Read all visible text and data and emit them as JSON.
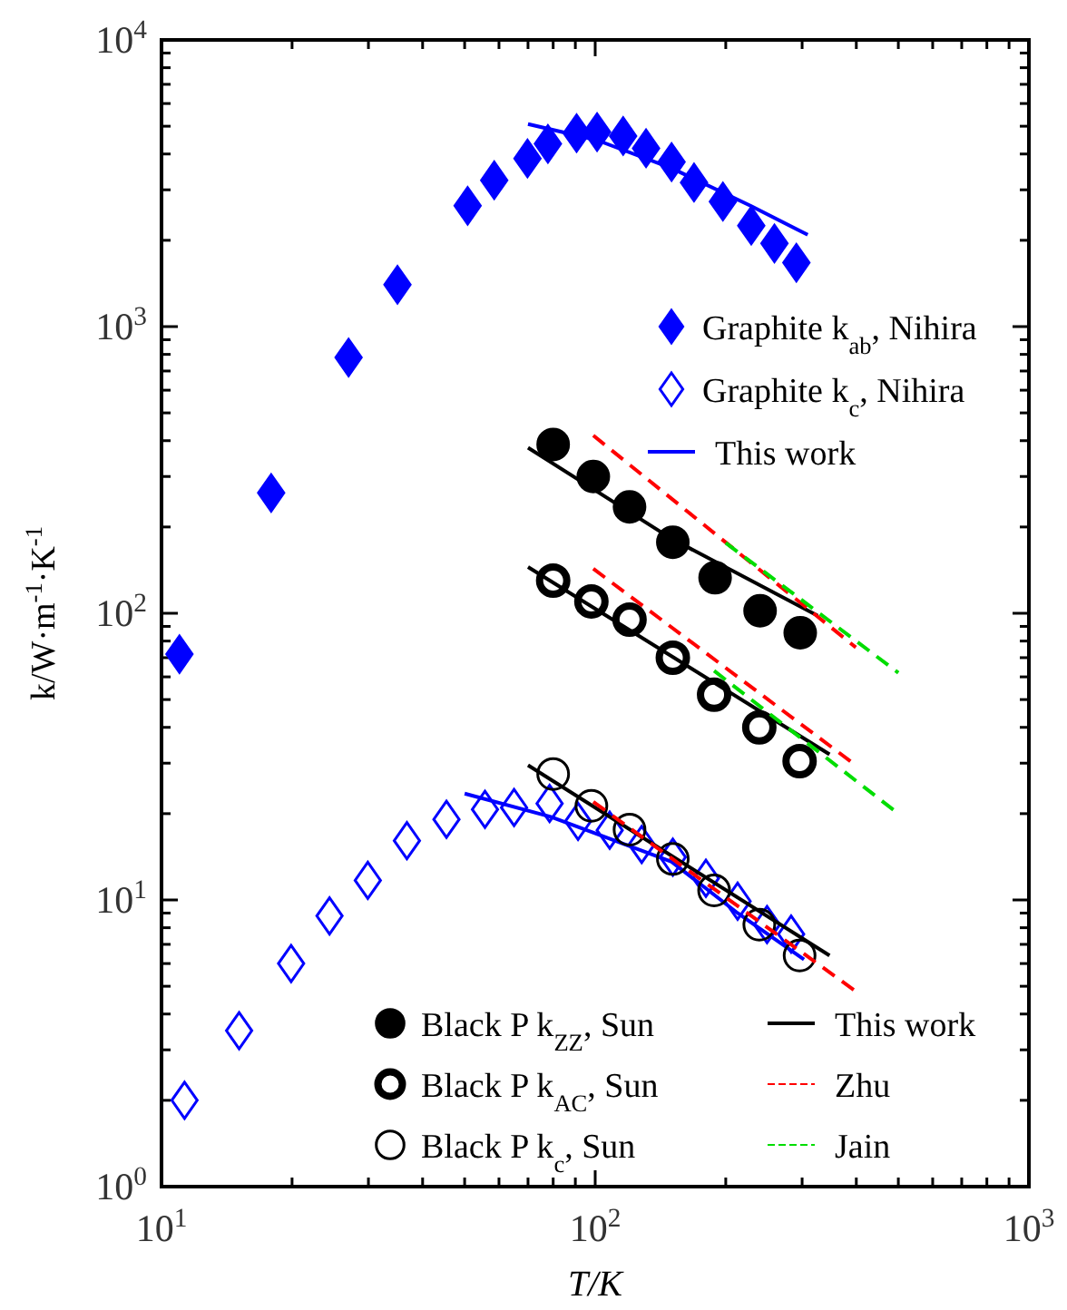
{
  "chart_data": {
    "type": "scatter",
    "xlabel": "T/K",
    "ylabel": "k/W·m$^{-1}$·K$^{-1}$",
    "log": "xy",
    "legend": "right",
    "xlim": [
      10,
      1000
    ],
    "ylim": [
      1,
      10000
    ],
    "xticks": [
      {
        "value": 10,
        "label": "10$^{1}$"
      },
      {
        "value": 20,
        "label": null
      },
      {
        "value": 30,
        "label": null
      },
      {
        "value": 40,
        "label": null
      },
      {
        "value": 50,
        "label": null
      },
      {
        "value": 60,
        "label": null
      },
      {
        "value": 70,
        "label": null
      },
      {
        "value": 80,
        "label": null
      },
      {
        "value": 90,
        "label": null
      },
      {
        "value": 100,
        "label": "10$^{2}$"
      },
      {
        "value": 200,
        "label": null
      },
      {
        "value": 300,
        "label": null
      },
      {
        "value": 400,
        "label": null
      },
      {
        "value": 500,
        "label": null
      },
      {
        "value": 600,
        "label": null
      },
      {
        "value": 700,
        "label": null
      },
      {
        "value": 800,
        "label": null
      },
      {
        "value": 900,
        "label": null
      },
      {
        "value": 1000,
        "label": "10$^{3}$"
      }
    ],
    "yticks": [
      {
        "value": 1,
        "label": "10$^{0}$"
      },
      {
        "value": 2,
        "label": null
      },
      {
        "value": 3,
        "label": null
      },
      {
        "value": 4,
        "label": null
      },
      {
        "value": 5,
        "label": null
      },
      {
        "value": 6,
        "label": null
      },
      {
        "value": 7,
        "label": null
      },
      {
        "value": 8,
        "label": null
      },
      {
        "value": 9,
        "label": null
      },
      {
        "value": 10,
        "label": "10$^{1}$"
      },
      {
        "value": 20,
        "label": null
      },
      {
        "value": 30,
        "label": null
      },
      {
        "value": 40,
        "label": null
      },
      {
        "value": 50,
        "label": null
      },
      {
        "value": 60,
        "label": null
      },
      {
        "value": 70,
        "label": null
      },
      {
        "value": 80,
        "label": null
      },
      {
        "value": 90,
        "label": null
      },
      {
        "value": 100,
        "label": "10$^{2}$"
      },
      {
        "value": 200,
        "label": null
      },
      {
        "value": 300,
        "label": null
      },
      {
        "value": 400,
        "label": null
      },
      {
        "value": 500,
        "label": null
      },
      {
        "value": 600,
        "label": null
      },
      {
        "value": 700,
        "label": null
      },
      {
        "value": 800,
        "label": null
      },
      {
        "value": 900,
        "label": null
      },
      {
        "value": 1000,
        "label": "10$^{3}$"
      },
      {
        "value": 2000,
        "label": null
      },
      {
        "value": 3000,
        "label": null
      },
      {
        "value": 4000,
        "label": null
      },
      {
        "value": 5000,
        "label": null
      },
      {
        "value": 6000,
        "label": null
      },
      {
        "value": 7000,
        "label": null
      },
      {
        "value": 8000,
        "label": null
      },
      {
        "value": 9000,
        "label": null
      },
      {
        "value": 10000,
        "label": "10$^{4}$"
      }
    ],
    "series": [
      {
        "name": "Graphite k$_{ab}$, Nihira",
        "marker": "diamond",
        "color": "#0000ff",
        "x": [
          11,
          17.9,
          27,
          35,
          50.8,
          58.5,
          69.8,
          77.8,
          90.6,
          101,
          116,
          131,
          150,
          169,
          197,
          229,
          259,
          291
        ],
        "values": [
          72,
          263,
          780,
          1400,
          2640,
          3240,
          3860,
          4340,
          4730,
          4770,
          4620,
          4190,
          3750,
          3180,
          2730,
          2250,
          1950,
          1670
        ]
      },
      {
        "name": "Graphite k$_{c}$, Nihira",
        "marker": "diamond",
        "color": "#0000ff",
        "x": [
          11.3,
          15.1,
          19.9,
          24.4,
          29.9,
          36.8,
          45.4,
          55.7,
          65,
          78.5,
          91.3,
          108,
          128,
          151,
          180,
          213,
          249,
          283
        ],
        "values": [
          2.0,
          3.5,
          6.0,
          8.8,
          11.7,
          16.1,
          19.1,
          20.7,
          21,
          21.7,
          18.8,
          17.5,
          15.6,
          14.1,
          11.9,
          9.9,
          8.2,
          7.6
        ]
      },
      {
        "name": "This work",
        "type": "line",
        "marker": "none",
        "line_style": "solid",
        "color": "#0000ff",
        "x": [
          70,
          101,
          150,
          228,
          309
        ],
        "values": [
          5090,
          4470,
          3570,
          2640,
          2090
        ]
      },
      {
        "type": "line",
        "marker": "none",
        "line_style": "solid",
        "color": "#0000ff",
        "x": [
          50,
          79,
          150,
          213,
          303
        ],
        "values": [
          23.5,
          19.5,
          13.6,
          9.0,
          6.2
        ]
      },
      {
        "name": "Black P k$_{ZZ}$, Sun",
        "marker": "circle",
        "color": "#000000",
        "x": [
          80,
          99,
          120,
          151,
          189,
          240,
          297
        ],
        "values": [
          388,
          300,
          235,
          177,
          133,
          102,
          85.5
        ]
      },
      {
        "name": "Black P k$_{AC}$, Sun",
        "marker": "circle",
        "color": "#000000",
        "x": [
          80,
          98,
          120,
          151,
          188,
          239,
          296
        ],
        "values": [
          130,
          110,
          95,
          70,
          52,
          40,
          30.5
        ]
      },
      {
        "name": "Black P k$_{c}$, Sun",
        "marker": "circle",
        "color": "#000000",
        "x": [
          80,
          98,
          120,
          151,
          188,
          239,
          296
        ],
        "values": [
          27.5,
          21.3,
          17.6,
          13.9,
          10.8,
          8.2,
          6.4
        ]
      },
      {
        "name": "This work",
        "type": "line",
        "marker": "none",
        "line_style": "solid",
        "color": "#000000",
        "x": [
          70,
          150,
          326
        ],
        "values": [
          378,
          182,
          98
        ]
      },
      {
        "type": "line",
        "marker": "none",
        "line_style": "solid",
        "color": "#000000",
        "x": [
          70,
          347
        ],
        "values": [
          145,
          32.2
        ]
      },
      {
        "type": "line",
        "marker": "none",
        "line_style": "solid",
        "color": "#000000",
        "x": [
          70,
          347
        ],
        "values": [
          29.5,
          6.4
        ]
      },
      {
        "name": "Zhu",
        "type": "line",
        "marker": "none",
        "line_style": "dashed",
        "color": "#ff0000",
        "x": [
          99,
          399
        ],
        "values": [
          417,
          76
        ]
      },
      {
        "type": "line",
        "marker": "none",
        "line_style": "dashed",
        "color": "#ff0000",
        "x": [
          99,
          399
        ],
        "values": [
          143,
          29.5
        ]
      },
      {
        "type": "line",
        "marker": "none",
        "line_style": "dashed",
        "color": "#ff0000",
        "x": [
          99,
          399
        ],
        "values": [
          22,
          4.8
        ]
      },
      {
        "name": "Jain",
        "type": "line",
        "marker": "none",
        "line_style": "dashed",
        "color": "#00dd00",
        "x": [
          200,
          500
        ],
        "values": [
          176,
          62
        ]
      },
      {
        "type": "line",
        "marker": "none",
        "line_style": "dashed",
        "color": "#00dd00",
        "x": [
          188,
          500
        ],
        "values": [
          63,
          20
        ]
      }
    ]
  }
}
